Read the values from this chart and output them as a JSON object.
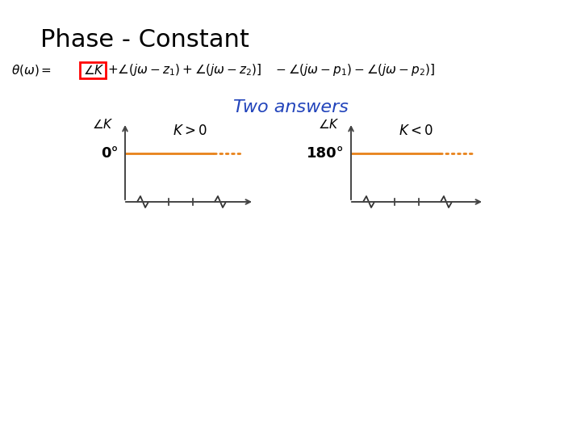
{
  "title": "Phase - Constant",
  "title_fontsize": 22,
  "two_answers_text": "Two answers",
  "two_answers_color": "#2244bb",
  "two_answers_fontsize": 16,
  "line_color": "#E8821A",
  "box_color": "#CC0000",
  "background_color": "#ffffff",
  "formula_fontsize": 11
}
